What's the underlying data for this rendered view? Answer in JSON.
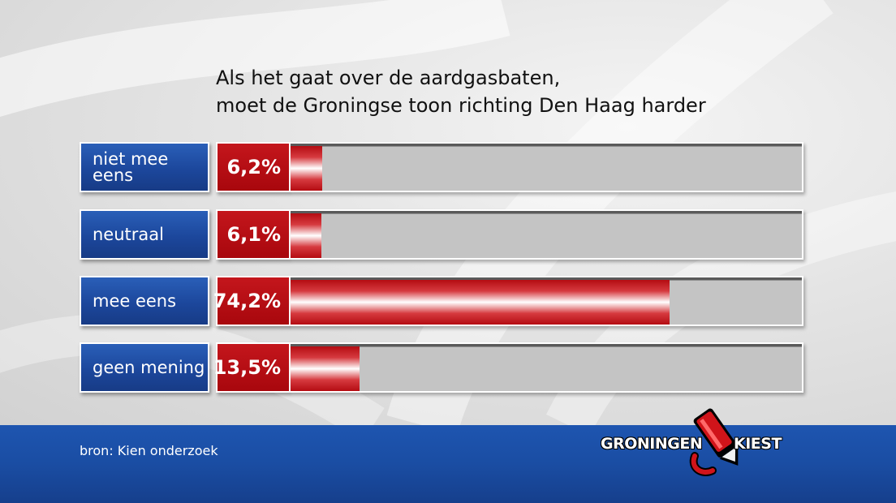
{
  "chart_data": {
    "type": "bar",
    "orientation": "horizontal",
    "title_lines": [
      "Als het gaat over de aardgasbaten,",
      "moet de Groningse toon richting Den Haag harder"
    ],
    "categories": [
      "niet mee eens",
      "neutraal",
      "mee eens",
      "geen mening"
    ],
    "category_lines": [
      [
        "niet mee",
        "eens"
      ],
      [
        "neutraal"
      ],
      [
        "mee eens"
      ],
      [
        "geen mening"
      ]
    ],
    "values": [
      6.2,
      6.1,
      74.2,
      13.5
    ],
    "value_labels": [
      "6,2%",
      "6,1%",
      "74,2%",
      "13,5%"
    ],
    "xlim": [
      0,
      100
    ],
    "grid": false,
    "colors": {
      "category_box": "#1c479c",
      "value_box": "#b40c12",
      "bar": "#d63a3f",
      "track": "#c4c4c4"
    }
  },
  "footer": {
    "source": "bron: Kien onderzoek",
    "logo_left": "GRONINGEN",
    "logo_right": "KIEST"
  }
}
